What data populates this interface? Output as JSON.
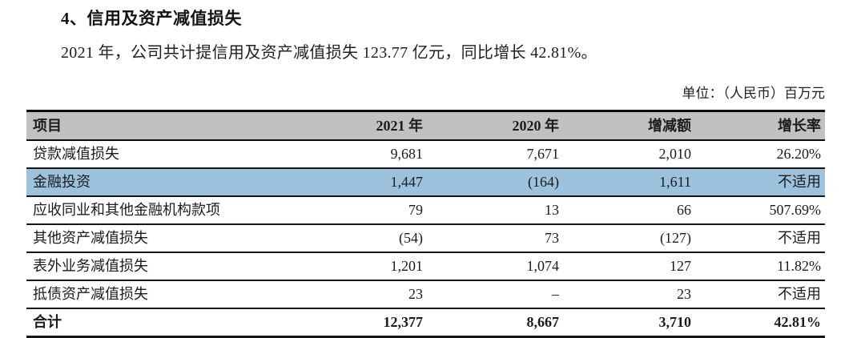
{
  "page": {
    "heading": "4、信用及资产减值损失",
    "paragraph": "2021 年，公司共计提信用及资产减值损失 123.77 亿元，同比增长 42.81%。",
    "unit_label": "单位：（人民币）百万元"
  },
  "table": {
    "columns": {
      "item": "项目",
      "y2021": "2021 年",
      "y2020": "2020 年",
      "change": "增减额",
      "growth": "增长率"
    },
    "rows": [
      {
        "item": "贷款减值损失",
        "y2021": "9,681",
        "y2020": "7,671",
        "change": "2,010",
        "growth": "26.20%",
        "highlight": false,
        "bold": false
      },
      {
        "item": "金融投资",
        "y2021": "1,447",
        "y2020": "(164)",
        "change": "1,611",
        "growth": "不适用",
        "highlight": true,
        "bold": false
      },
      {
        "item": "应收同业和其他金融机构款项",
        "y2021": "79",
        "y2020": "13",
        "change": "66",
        "growth": "507.69%",
        "highlight": false,
        "bold": false
      },
      {
        "item": "其他资产减值损失",
        "y2021": "(54)",
        "y2020": "73",
        "change": "(127)",
        "growth": "不适用",
        "highlight": false,
        "bold": false
      },
      {
        "item": "表外业务减值损失",
        "y2021": "1,201",
        "y2020": "1,074",
        "change": "127",
        "growth": "11.82%",
        "highlight": false,
        "bold": false
      },
      {
        "item": "抵债资产减值损失",
        "y2021": "23",
        "y2020": "–",
        "change": "23",
        "growth": "不适用",
        "highlight": false,
        "bold": false
      },
      {
        "item": "合计",
        "y2021": "12,377",
        "y2020": "8,667",
        "change": "3,710",
        "growth": "42.81%",
        "highlight": false,
        "bold": true
      }
    ],
    "colors": {
      "header_bg": "#c1c1c1",
      "highlight_bg": "#9cc2dd",
      "border": "#161616"
    }
  }
}
